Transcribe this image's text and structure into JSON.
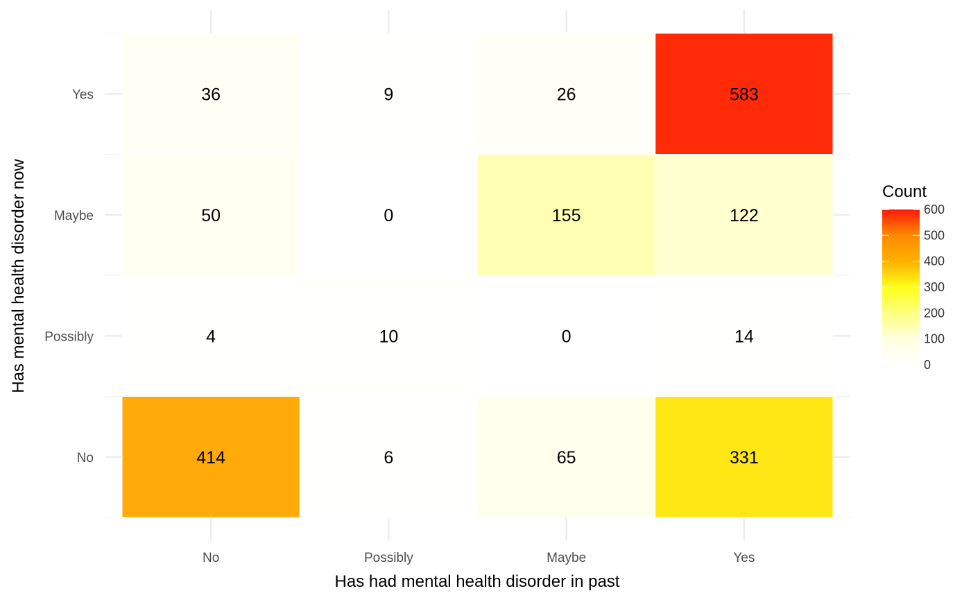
{
  "chart_data": {
    "type": "heatmap",
    "title": "",
    "xlabel": "Has had mental health disorder in past",
    "ylabel": "Has mental health disorder now",
    "x_categories": [
      "No",
      "Possibly",
      "Maybe",
      "Yes"
    ],
    "y_categories": [
      "No",
      "Possibly",
      "Maybe",
      "Yes"
    ],
    "cells": [
      {
        "x": "No",
        "y": "Yes",
        "value": 36
      },
      {
        "x": "Possibly",
        "y": "Yes",
        "value": 9
      },
      {
        "x": "Maybe",
        "y": "Yes",
        "value": 26
      },
      {
        "x": "Yes",
        "y": "Yes",
        "value": 583
      },
      {
        "x": "No",
        "y": "Maybe",
        "value": 50
      },
      {
        "x": "Possibly",
        "y": "Maybe",
        "value": 0
      },
      {
        "x": "Maybe",
        "y": "Maybe",
        "value": 155
      },
      {
        "x": "Yes",
        "y": "Maybe",
        "value": 122
      },
      {
        "x": "No",
        "y": "Possibly",
        "value": 4
      },
      {
        "x": "Possibly",
        "y": "Possibly",
        "value": 10
      },
      {
        "x": "Maybe",
        "y": "Possibly",
        "value": 0
      },
      {
        "x": "Yes",
        "y": "Possibly",
        "value": 14
      },
      {
        "x": "No",
        "y": "No",
        "value": 414
      },
      {
        "x": "Possibly",
        "y": "No",
        "value": 6
      },
      {
        "x": "Maybe",
        "y": "No",
        "value": 65
      },
      {
        "x": "Yes",
        "y": "No",
        "value": 331
      }
    ],
    "legend": {
      "title": "Count",
      "position": "right",
      "ticks": [
        0,
        100,
        200,
        300,
        400,
        500,
        600
      ],
      "range": [
        0,
        600
      ]
    },
    "color_scale": {
      "low": "#ffffff",
      "mid1": "#ffff33",
      "mid2": "#ffa500",
      "high": "#ff0000"
    },
    "grid": true
  }
}
